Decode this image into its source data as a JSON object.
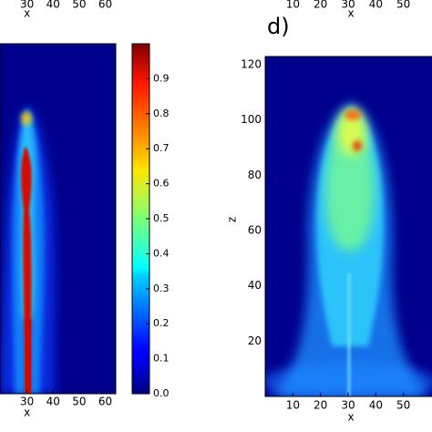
{
  "chart_data": [
    {
      "type": "heatmap",
      "xlabel": "x",
      "xlim": [
        20,
        64
      ],
      "xticks": [
        30,
        40,
        50,
        60
      ]
    },
    {
      "type": "heatmap",
      "xlabel": "x",
      "xlim": [
        20,
        64
      ],
      "xticks": [
        30,
        40,
        50,
        60
      ],
      "colorbar": {
        "ylim": [
          0,
          1
        ],
        "yticks": [
          {
            "value": 0,
            "label": "0.0"
          },
          0.1,
          0.2,
          0.3,
          0.4,
          0.5,
          0.6,
          0.7,
          0.8,
          0.9
        ]
      }
    },
    {
      "type": "heatmap",
      "xlabel": "x",
      "xlim": [
        0,
        60
      ],
      "xticks": [
        10,
        20,
        30,
        40,
        50
      ]
    },
    {
      "type": "heatmap",
      "title": "d)",
      "xlabel": "x",
      "ylabel": "z",
      "xlim": [
        0,
        60
      ],
      "ylim": [
        0,
        123
      ],
      "xticks": [
        10,
        20,
        30,
        40,
        50
      ],
      "yticks": [
        20,
        40,
        60,
        80,
        100,
        120
      ]
    }
  ]
}
